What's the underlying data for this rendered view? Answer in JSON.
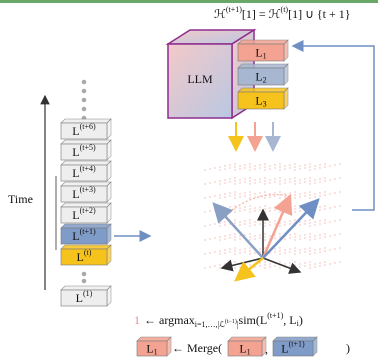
{
  "top_formula": {
    "h1": "ℋ",
    "h1_sup": "(t+1)",
    "mid": "[1] = ℋ",
    "h2_sup": "(t)",
    "end": "[1] ∪ {t + 1}"
  },
  "llm": {
    "label": "LLM"
  },
  "llm_blocks": [
    {
      "base": "L",
      "sub": "1",
      "color": "#f4a291"
    },
    {
      "base": "L",
      "sub": "2",
      "color": "#a7b7d2"
    },
    {
      "base": "L",
      "sub": "3",
      "color": "#f6c31c"
    }
  ],
  "time_label": "Time",
  "stack": [
    {
      "base": "L",
      "sup": "(t+6)",
      "color": "#eeeeee"
    },
    {
      "base": "L",
      "sup": "(t+5)",
      "color": "#eeeeee"
    },
    {
      "base": "L",
      "sup": "(t+4)",
      "color": "#eeeeee"
    },
    {
      "base": "L",
      "sup": "(t+3)",
      "color": "#eeeeee"
    },
    {
      "base": "L",
      "sup": "(t+2)",
      "color": "#eeeeee"
    },
    {
      "base": "L",
      "sup": "(t+1)",
      "color": "#7f9bc8"
    },
    {
      "base": "L",
      "sup": "(t)",
      "color": "#f6c31c"
    },
    {
      "base": "L",
      "sup": "(1)",
      "color": "#eeeeee"
    }
  ],
  "argmax_formula": {
    "index": "1",
    "op": "← argmax",
    "sub_a": "i=1,…,|ℒ",
    "sub_sup": "(t−1)",
    "sub_b": "|",
    "sim": "sim(L",
    "sim_sup": "(t+1)",
    "sim_mid": ", L",
    "sim_sub": "i",
    "close": ")"
  },
  "merge_formula": {
    "result": {
      "base": "L",
      "sub": "1",
      "color": "#f4a291"
    },
    "op": "← Merge(",
    "arg1": {
      "base": "L",
      "sub": "1",
      "color": "#f4a291"
    },
    "comma": ",",
    "arg2": {
      "base": "L",
      "sup": "(t+1)",
      "color": "#7f9bc8"
    },
    "close": ")"
  }
}
